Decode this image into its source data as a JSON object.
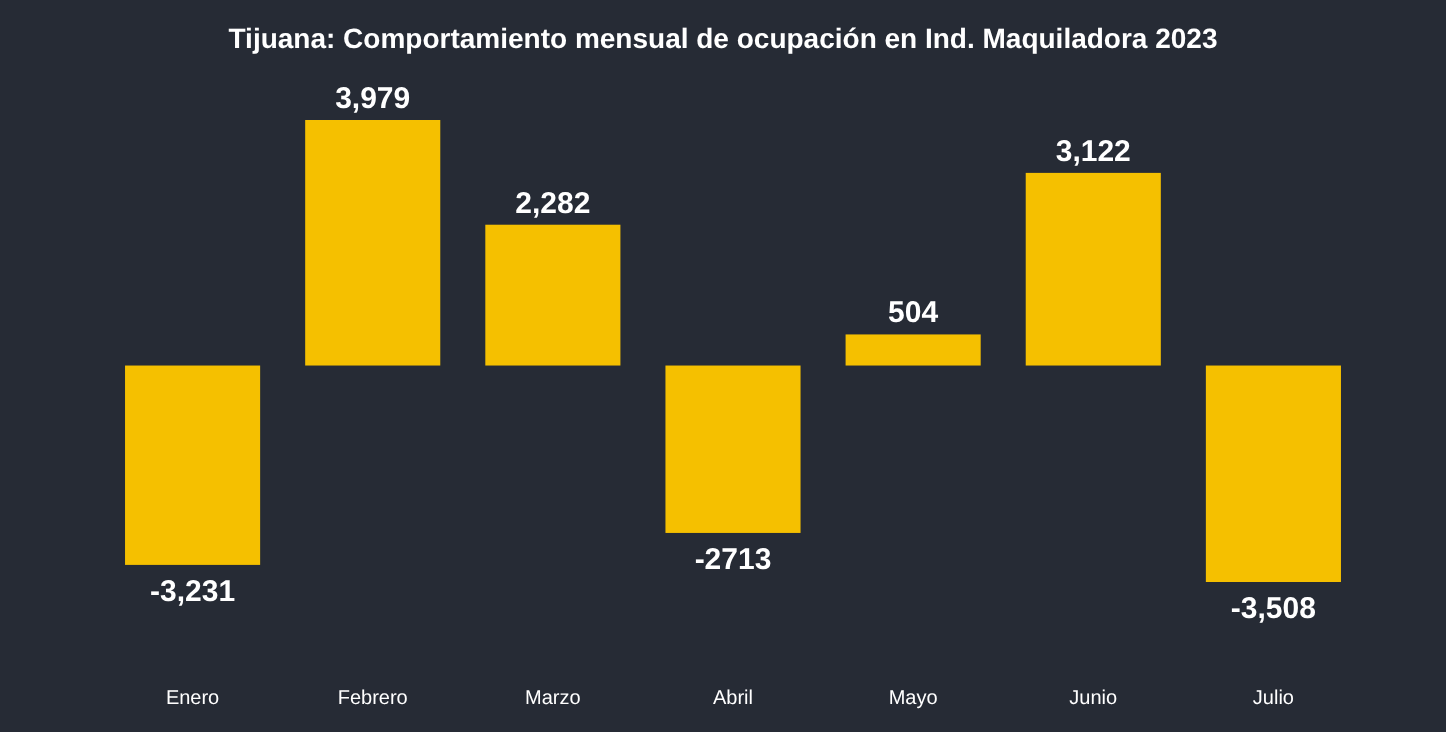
{
  "chart_data": {
    "type": "bar",
    "title": "Tijuana: Comportamiento mensual de ocupación en Ind. Maquiladora 2023",
    "categories": [
      "Enero",
      "Febrero",
      "Marzo",
      "Abril",
      "Mayo",
      "Junio",
      "Julio"
    ],
    "values": [
      -3231,
      3979,
      2282,
      -2713,
      504,
      3122,
      -3508
    ],
    "value_labels": [
      "-3,231",
      "3,979",
      "2,282",
      "-2713",
      "504",
      "3,122",
      "-3,508"
    ],
    "color": "#f5c000"
  }
}
